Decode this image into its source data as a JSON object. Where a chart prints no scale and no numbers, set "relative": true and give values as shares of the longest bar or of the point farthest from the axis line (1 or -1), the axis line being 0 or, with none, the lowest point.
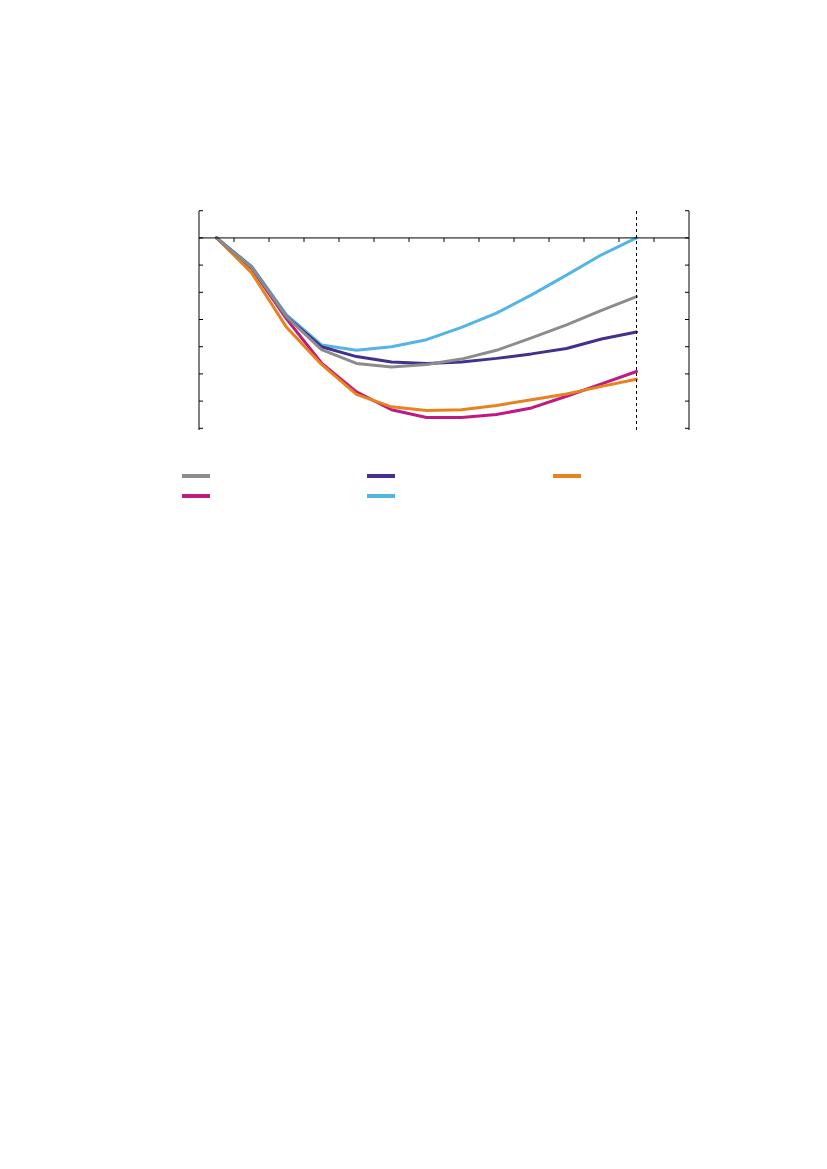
{
  "chart_data": {
    "type": "line",
    "relative": true,
    "categories": [
      null,
      null,
      null,
      null,
      null,
      null,
      null,
      null,
      null,
      null,
      null,
      null,
      null,
      null
    ],
    "grid": false,
    "tick_labels": false,
    "marker": "none",
    "line_style": "solid",
    "series": [
      {
        "color": "#8c8c8c",
        "values": [
          0,
          -0.163,
          -0.439,
          -0.622,
          -0.699,
          -0.719,
          -0.705,
          -0.675,
          -0.626,
          -0.557,
          -0.484,
          -0.404,
          -0.327,
          null
        ]
      },
      {
        "color": "#45308f",
        "values": [
          0,
          -0.163,
          -0.439,
          -0.606,
          -0.661,
          -0.691,
          -0.699,
          -0.691,
          -0.671,
          -0.646,
          -0.616,
          -0.563,
          -0.524,
          null
        ]
      },
      {
        "color": "#e8821e",
        "values": [
          0,
          -0.193,
          -0.498,
          -0.705,
          -0.872,
          -0.941,
          -0.961,
          -0.957,
          -0.933,
          -0.902,
          -0.869,
          -0.827,
          -0.787,
          null
        ]
      },
      {
        "color": "#c0197f",
        "values": [
          0,
          -0.169,
          -0.451,
          -0.697,
          -0.858,
          -0.957,
          -1,
          -1,
          -0.984,
          -0.947,
          -0.882,
          -0.813,
          -0.744,
          null
        ]
      },
      {
        "color": "#55b4e6",
        "values": [
          0,
          -0.157,
          -0.429,
          -0.596,
          -0.626,
          -0.606,
          -0.567,
          -0.498,
          -0.419,
          -0.317,
          -0.207,
          -0.094,
          0,
          null
        ]
      }
    ]
  }
}
